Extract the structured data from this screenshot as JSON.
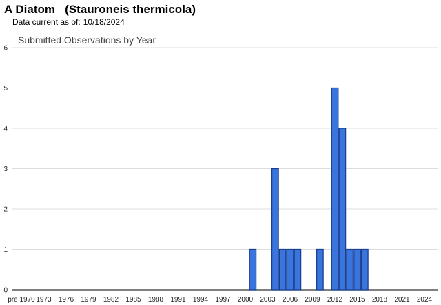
{
  "header": {
    "title": "A Diatom   (Stauroneis thermicola)",
    "date_label": "Data current as of:",
    "date_value": "10/18/2024"
  },
  "chart_data": {
    "type": "bar",
    "title": "Submitted Observations by Year",
    "xlabel": "",
    "ylabel": "",
    "ylim": [
      0,
      6
    ],
    "y_ticks": [
      0,
      1,
      2,
      3,
      4,
      5,
      6
    ],
    "grid": true,
    "bar_color": "#3a75dd",
    "bar_edge_color": "#1b3f8f",
    "x_tick_labels": [
      "pre 1970",
      "1973",
      "1976",
      "1979",
      "1982",
      "1985",
      "1988",
      "1991",
      "1994",
      "1997",
      "2000",
      "2003",
      "2006",
      "2009",
      "2012",
      "2015",
      "2018",
      "2021",
      "2024"
    ],
    "x": [
      2001,
      2004,
      2005,
      2006,
      2007,
      2010,
      2012,
      2013,
      2014,
      2015,
      2016
    ],
    "values": [
      1,
      3,
      1,
      1,
      1,
      1,
      5,
      4,
      1,
      1,
      1
    ]
  }
}
